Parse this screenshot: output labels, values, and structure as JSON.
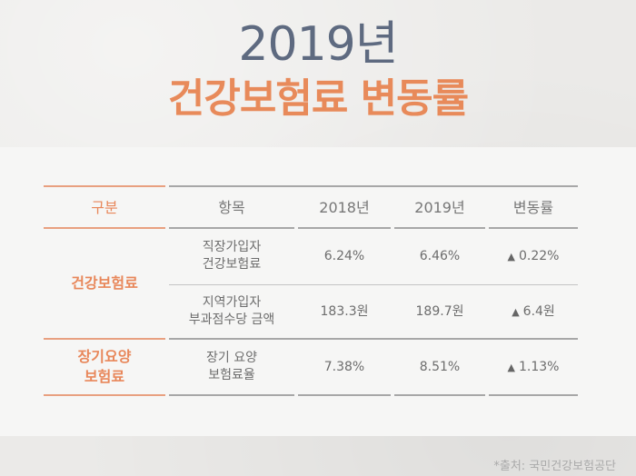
{
  "title": {
    "year": "2019년",
    "main": "건강보험료 변동률"
  },
  "table": {
    "headers": [
      "구분",
      "항목",
      "2018년",
      "2019년",
      "변동률"
    ],
    "groups": [
      {
        "category": "건강보험료",
        "rows": [
          {
            "item_line1": "직장가입자",
            "item_line2": "건강보험료",
            "y2018": "6.24%",
            "y2019": "6.46%",
            "change": "0.22%"
          },
          {
            "item_line1": "지역가입자",
            "item_line2": "부과점수당 금액",
            "y2018": "183.3원",
            "y2019": "189.7원",
            "change": "6.4원"
          }
        ]
      },
      {
        "category_line1": "장기요양",
        "category_line2": "보험료",
        "rows": [
          {
            "item_line1": "장기 요양",
            "item_line2": "보험료율",
            "y2018": "7.38%",
            "y2019": "8.51%",
            "change": "1.13%"
          }
        ]
      }
    ],
    "up_icon": "▲"
  },
  "source": "*출처: 국민건강보험공단",
  "colors": {
    "accent": "#e8875a",
    "year": "#5e6a80",
    "text": "#6d6d6d"
  }
}
